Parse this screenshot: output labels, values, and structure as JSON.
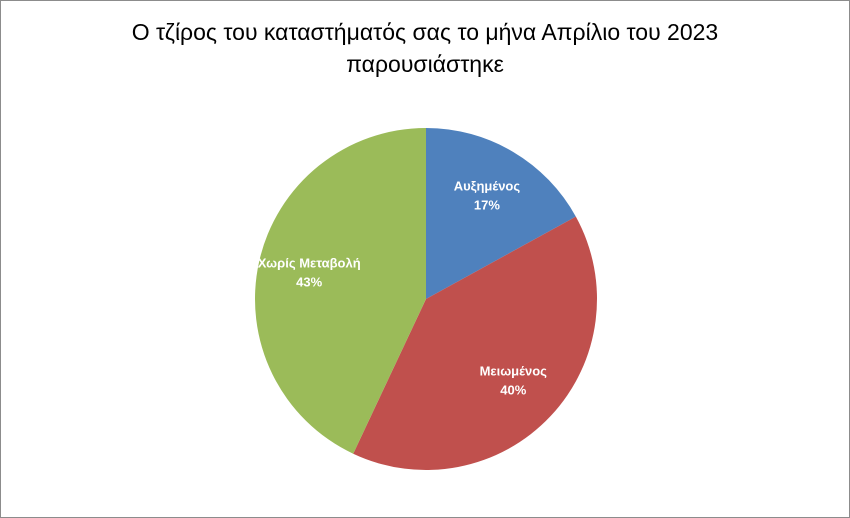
{
  "chart_data": {
    "type": "pie",
    "title": [
      "Ο τζίρος του καταστήματός σας το μήνα Απρίλιο του 2023",
      "παρουσιάστηκε"
    ],
    "categories": [
      "Αυξημένος",
      "Μειωμένος",
      "Χωρίς Μεταβολή"
    ],
    "values": [
      17,
      40,
      43
    ],
    "value_labels": [
      "17%",
      "40%",
      "43%"
    ],
    "colors": [
      "#4f81bd",
      "#c0504d",
      "#9bbb59"
    ]
  }
}
